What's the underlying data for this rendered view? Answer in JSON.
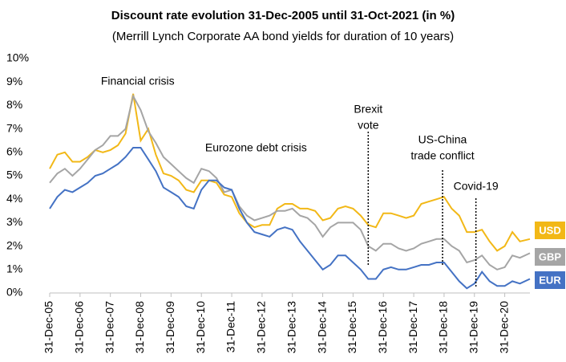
{
  "chart_data": {
    "type": "line",
    "title": "Discount rate evolution 31-Dec-2005 until 31-Oct-2021 (in %)",
    "subtitle": "(Merrill Lynch Corporate AA bond yields for duration of 10 years)",
    "x": [
      2006,
      2006.25,
      2006.5,
      2006.75,
      2007,
      2007.25,
      2007.5,
      2007.75,
      2008,
      2008.25,
      2008.5,
      2008.75,
      2009,
      2009.25,
      2009.5,
      2009.75,
      2010,
      2010.25,
      2010.5,
      2010.75,
      2011,
      2011.25,
      2011.5,
      2011.75,
      2012,
      2012.25,
      2012.5,
      2012.75,
      2013,
      2013.25,
      2013.5,
      2013.75,
      2014,
      2014.25,
      2014.5,
      2014.75,
      2015,
      2015.25,
      2015.5,
      2015.75,
      2016,
      2016.25,
      2016.5,
      2016.75,
      2017,
      2017.25,
      2017.5,
      2017.75,
      2018,
      2018.25,
      2018.5,
      2018.75,
      2019,
      2019.25,
      2019.5,
      2019.75,
      2020,
      2020.25,
      2020.5,
      2020.75,
      2021,
      2021.25,
      2021.5,
      2021.83
    ],
    "series": [
      {
        "name": "USD",
        "color": "#f2b817",
        "values": [
          5.3,
          5.9,
          6.0,
          5.6,
          5.6,
          5.8,
          6.1,
          6.0,
          6.1,
          6.3,
          6.8,
          8.5,
          6.5,
          7.0,
          5.9,
          5.1,
          5.0,
          4.8,
          4.4,
          4.3,
          4.8,
          4.8,
          4.7,
          4.2,
          4.1,
          3.4,
          3.0,
          2.8,
          2.9,
          2.9,
          3.6,
          3.8,
          3.8,
          3.6,
          3.6,
          3.5,
          3.1,
          3.2,
          3.6,
          3.7,
          3.6,
          3.3,
          2.9,
          2.8,
          3.4,
          3.4,
          3.3,
          3.2,
          3.3,
          3.8,
          3.9,
          4.0,
          4.1,
          3.6,
          3.3,
          2.6,
          2.6,
          2.7,
          2.2,
          1.8,
          2.0,
          2.6,
          2.2,
          2.3
        ]
      },
      {
        "name": "GBP",
        "color": "#a5a5a5",
        "values": [
          4.7,
          5.1,
          5.3,
          5.0,
          5.3,
          5.7,
          6.1,
          6.3,
          6.7,
          6.7,
          7.0,
          8.4,
          7.8,
          6.9,
          6.4,
          5.8,
          5.5,
          5.2,
          4.9,
          4.7,
          5.3,
          5.2,
          4.9,
          4.3,
          4.4,
          3.7,
          3.3,
          3.1,
          3.2,
          3.3,
          3.5,
          3.5,
          3.6,
          3.3,
          3.2,
          2.9,
          2.4,
          2.8,
          3.0,
          3.0,
          3.0,
          2.7,
          2.0,
          1.8,
          2.1,
          2.1,
          1.9,
          1.8,
          1.9,
          2.1,
          2.2,
          2.3,
          2.3,
          2.0,
          1.8,
          1.3,
          1.4,
          1.6,
          1.2,
          1.0,
          1.1,
          1.6,
          1.5,
          1.7
        ]
      },
      {
        "name": "EUR",
        "color": "#4472c4",
        "values": [
          3.6,
          4.1,
          4.4,
          4.3,
          4.5,
          4.7,
          5.0,
          5.1,
          5.3,
          5.5,
          5.8,
          6.2,
          6.2,
          5.7,
          5.2,
          4.5,
          4.3,
          4.1,
          3.7,
          3.6,
          4.4,
          4.8,
          4.8,
          4.5,
          4.4,
          3.6,
          3.0,
          2.6,
          2.5,
          2.4,
          2.7,
          2.8,
          2.7,
          2.2,
          1.8,
          1.4,
          1.0,
          1.2,
          1.6,
          1.6,
          1.3,
          1.0,
          0.6,
          0.6,
          1.0,
          1.1,
          1.0,
          1.0,
          1.1,
          1.2,
          1.2,
          1.3,
          1.3,
          0.9,
          0.5,
          0.2,
          0.4,
          0.9,
          0.5,
          0.3,
          0.3,
          0.5,
          0.4,
          0.6
        ]
      }
    ],
    "xlim": [
      2006,
      2021.83
    ],
    "xticks": [
      {
        "value": 2006,
        "label": "31-Dec-05"
      },
      {
        "value": 2007,
        "label": "31-Dec-06"
      },
      {
        "value": 2008,
        "label": "31-Dec-07"
      },
      {
        "value": 2009,
        "label": "31-Dec-08"
      },
      {
        "value": 2010,
        "label": "31-Dec-09"
      },
      {
        "value": 2011,
        "label": "31-Dec-10"
      },
      {
        "value": 2012,
        "label": "31-Dec-11"
      },
      {
        "value": 2013,
        "label": "31-Dec-12"
      },
      {
        "value": 2014,
        "label": "31-Dec-13"
      },
      {
        "value": 2015,
        "label": "31-Dec-14"
      },
      {
        "value": 2016,
        "label": "31-Dec-15"
      },
      {
        "value": 2017,
        "label": "31-Dec-16"
      },
      {
        "value": 2018,
        "label": "31-Dec-17"
      },
      {
        "value": 2019,
        "label": "31-Dec-18"
      },
      {
        "value": 2020,
        "label": "31-Dec-19"
      },
      {
        "value": 2021,
        "label": "31-Dec-20"
      }
    ],
    "ylim": [
      0,
      10
    ],
    "yticks": [
      {
        "value": 0,
        "label": "0%"
      },
      {
        "value": 1,
        "label": "1%"
      },
      {
        "value": 2,
        "label": "2%"
      },
      {
        "value": 3,
        "label": "3%"
      },
      {
        "value": 4,
        "label": "4%"
      },
      {
        "value": 5,
        "label": "5%"
      },
      {
        "value": 6,
        "label": "6%"
      },
      {
        "value": 7,
        "label": "7%"
      },
      {
        "value": 8,
        "label": "8%"
      },
      {
        "value": 9,
        "label": "9%"
      },
      {
        "value": 10,
        "label": "10%"
      }
    ],
    "annotations": [
      {
        "text": [
          "Financial crisis"
        ],
        "x": 2008.9
      },
      {
        "text": [
          "Eurozone debt crisis"
        ],
        "x": 2012.8
      },
      {
        "text": [
          "Brexit",
          "vote"
        ],
        "x": 2016.5
      },
      {
        "text": [
          "US-China",
          "trade conflict"
        ],
        "x": 2018.95
      },
      {
        "text": [
          "Covid-19"
        ],
        "x": 2020.05
      }
    ]
  }
}
